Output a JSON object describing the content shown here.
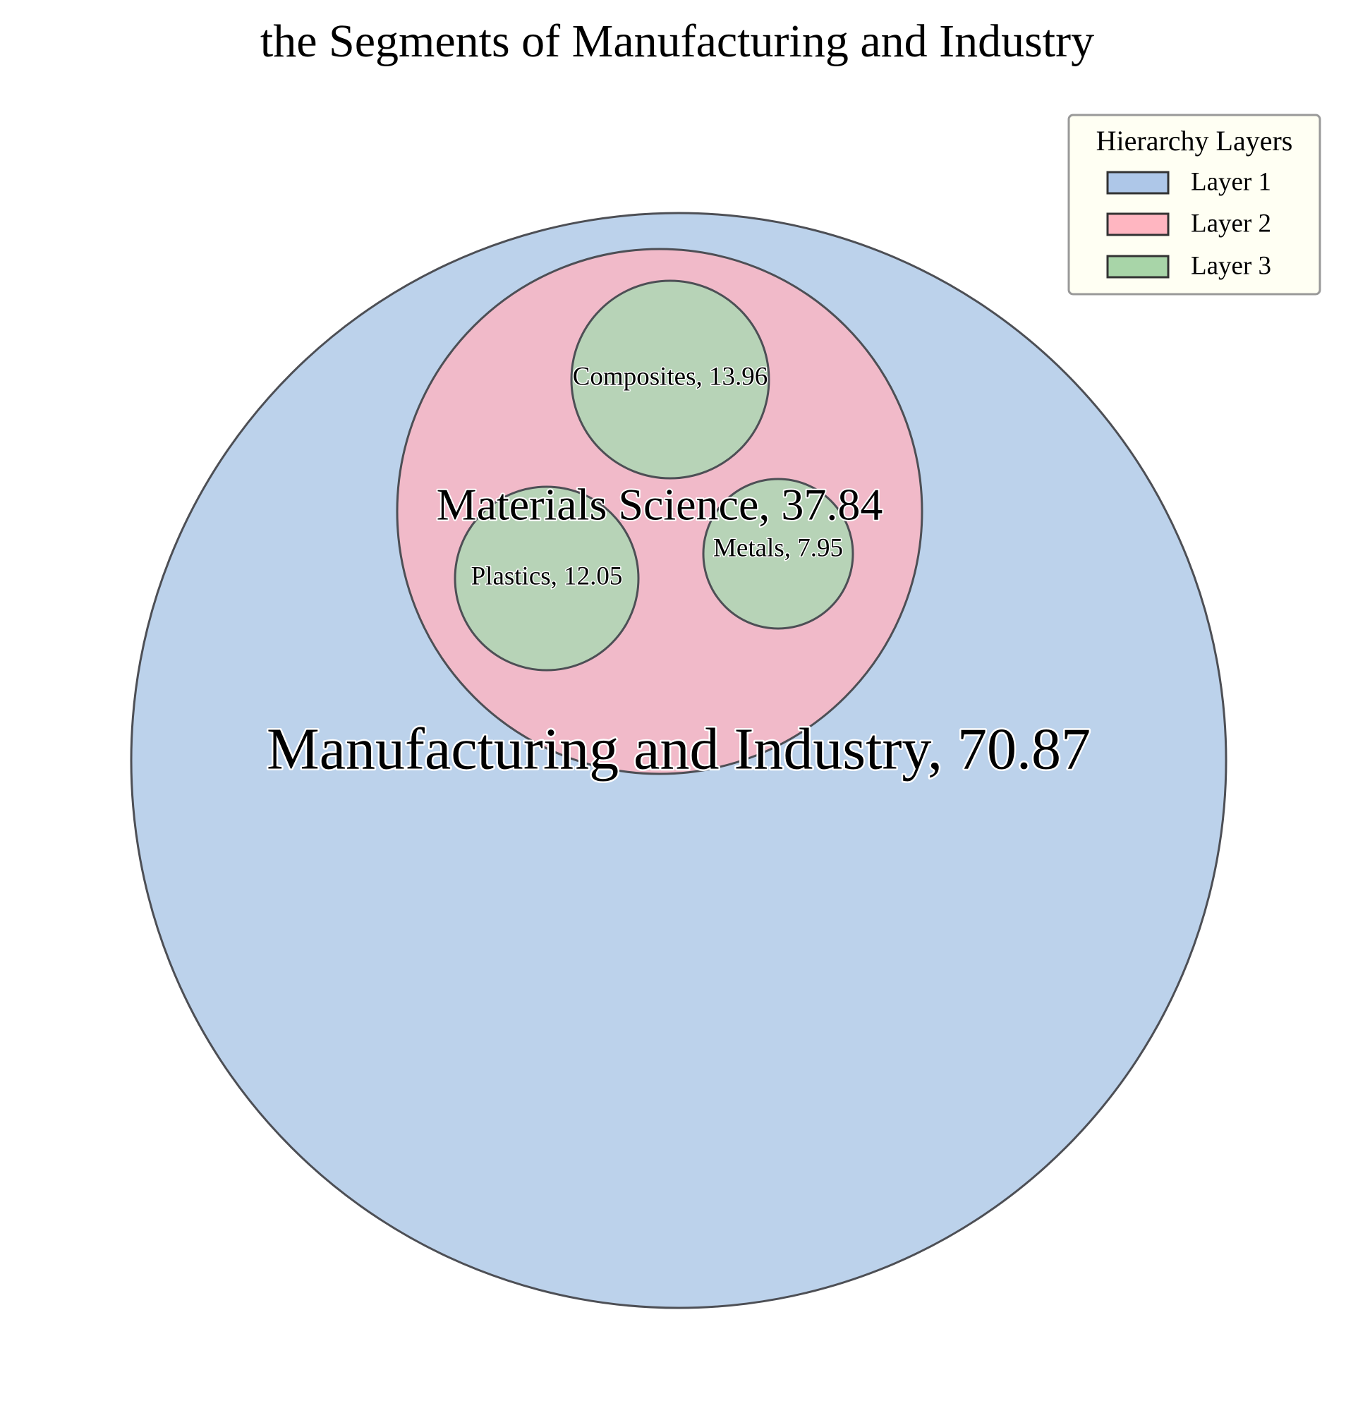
{
  "chart_data": {
    "type": "circle-packing",
    "title": "the Segments of Manufacturing and Industry",
    "nodes": [
      {
        "name": "Manufacturing and Industry",
        "value": 70.87,
        "layer": 1,
        "label": "Manufacturing and Industry, 70.87"
      },
      {
        "name": "Materials Science",
        "value": 37.84,
        "layer": 2,
        "parent": "Manufacturing and Industry",
        "label": "Materials Science, 37.84"
      },
      {
        "name": "Composites",
        "value": 13.96,
        "layer": 3,
        "parent": "Materials Science",
        "label": "Composites, 13.96"
      },
      {
        "name": "Plastics",
        "value": 12.05,
        "layer": 3,
        "parent": "Materials Science",
        "label": "Plastics, 12.05"
      },
      {
        "name": "Metals",
        "value": 7.95,
        "layer": 3,
        "parent": "Materials Science",
        "label": "Metals, 7.95"
      }
    ],
    "legend": {
      "title": "Hierarchy Layers",
      "placement": "top-right",
      "entries": [
        {
          "label": "Layer 1",
          "color": "#aec7e8"
        },
        {
          "label": "Layer 2",
          "color": "#ffb6c1"
        },
        {
          "label": "Layer 3",
          "color": "#a8d5a8"
        }
      ]
    },
    "colors": {
      "layer1_fill": "#bcd2eb",
      "layer2_fill": "#f1bac9",
      "layer3_fill": "#b7d3b7",
      "edge": "#4d4f55",
      "legend_bg": "#fffff3"
    }
  }
}
